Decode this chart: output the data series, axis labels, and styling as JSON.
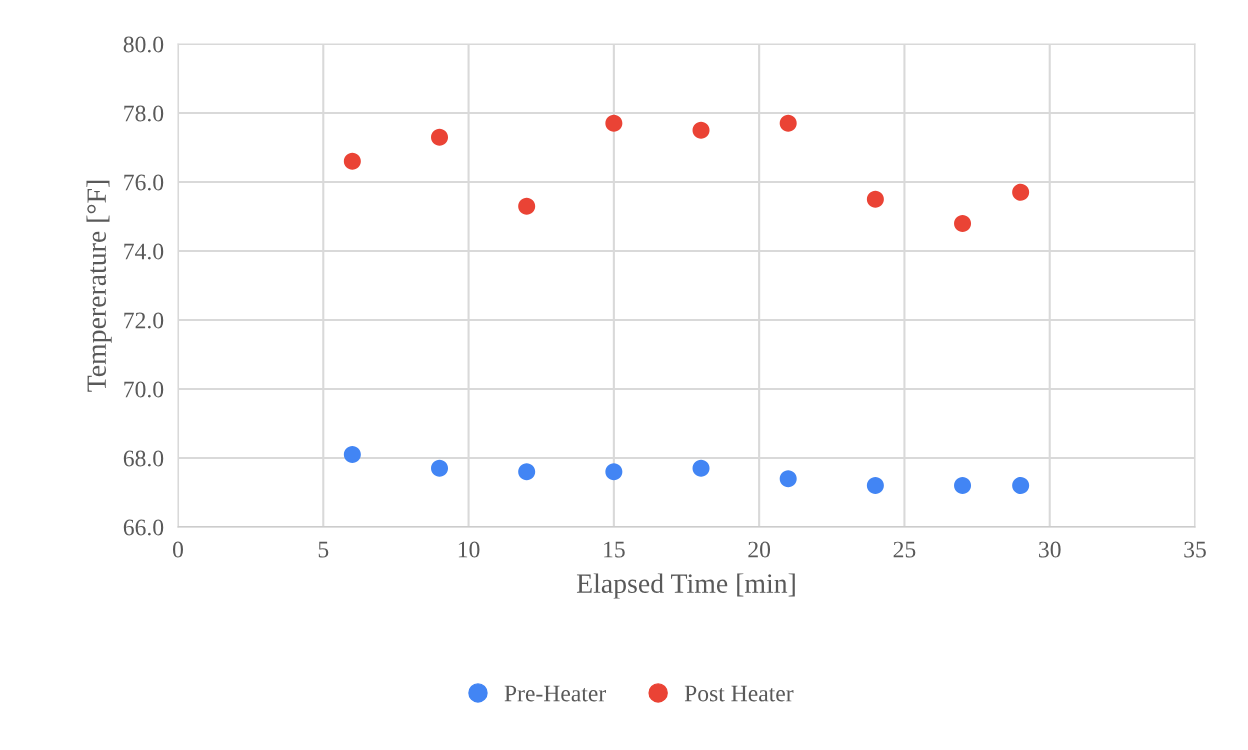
{
  "chart_data": {
    "type": "scatter",
    "xlabel": "Elapsed Time [min]",
    "ylabel": "Tempererature [°F]",
    "xlim": [
      0,
      35
    ],
    "xticks": [
      0,
      5,
      10,
      15,
      20,
      25,
      30,
      35
    ],
    "ylim": [
      66.0,
      80.0
    ],
    "yticks": [
      {
        "value": 66,
        "label": "66.0"
      },
      {
        "value": 68,
        "label": "68.0"
      },
      {
        "value": 70,
        "label": "70.0"
      },
      {
        "value": 72,
        "label": "72.0"
      },
      {
        "value": 74,
        "label": "74.0"
      },
      {
        "value": 76,
        "label": "76.0"
      },
      {
        "value": 78,
        "label": "78.0"
      },
      {
        "value": 80,
        "label": "80.0"
      }
    ],
    "x": [
      6,
      9,
      12,
      15,
      18,
      21,
      24,
      27,
      29
    ],
    "series": [
      {
        "name": "Pre-Heater",
        "color": "#4285f4",
        "values": [
          68.1,
          67.7,
          67.6,
          67.6,
          67.7,
          67.4,
          67.2,
          67.2,
          67.2
        ]
      },
      {
        "name": "Post Heater",
        "color": "#ea4335",
        "values": [
          76.6,
          77.3,
          75.3,
          77.7,
          77.5,
          77.7,
          75.5,
          74.8,
          75.7
        ]
      }
    ],
    "grid": true,
    "legend": "bottom",
    "marker": "circle"
  }
}
